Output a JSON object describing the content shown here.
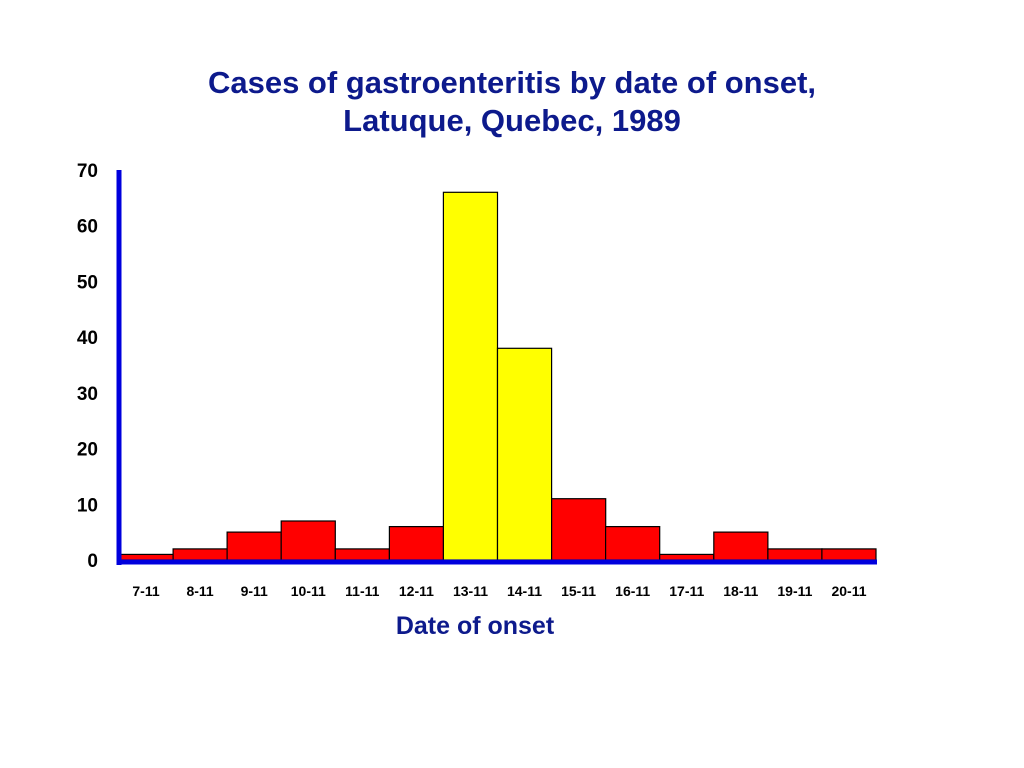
{
  "chart_data": {
    "type": "bar",
    "title_lines": [
      "Cases of gastroenteritis by date of onset,",
      "Latuque, Quebec, 1989"
    ],
    "xlabel": "Date of onset",
    "ylabel": "",
    "categories": [
      "7-11",
      "8-11",
      "9-11",
      "10-11",
      "11-11",
      "12-11",
      "13-11",
      "14-11",
      "15-11",
      "16-11",
      "17-11",
      "18-11",
      "19-11",
      "20-11"
    ],
    "values": [
      1,
      2,
      5,
      7,
      2,
      6,
      66,
      38,
      11,
      6,
      1,
      5,
      2,
      2
    ],
    "highlight_categories": [
      "13-11",
      "14-11"
    ],
    "ylim": [
      0,
      70
    ],
    "yticks": [
      "0",
      "10",
      "20",
      "30",
      "40",
      "50",
      "60",
      "70"
    ],
    "grid": false,
    "legend": "none",
    "colors": {
      "bar": "#ff0000",
      "highlight": "#ffff00",
      "axis": "#0000dd",
      "title": "#0d1a8c",
      "outline": "#000000"
    }
  }
}
